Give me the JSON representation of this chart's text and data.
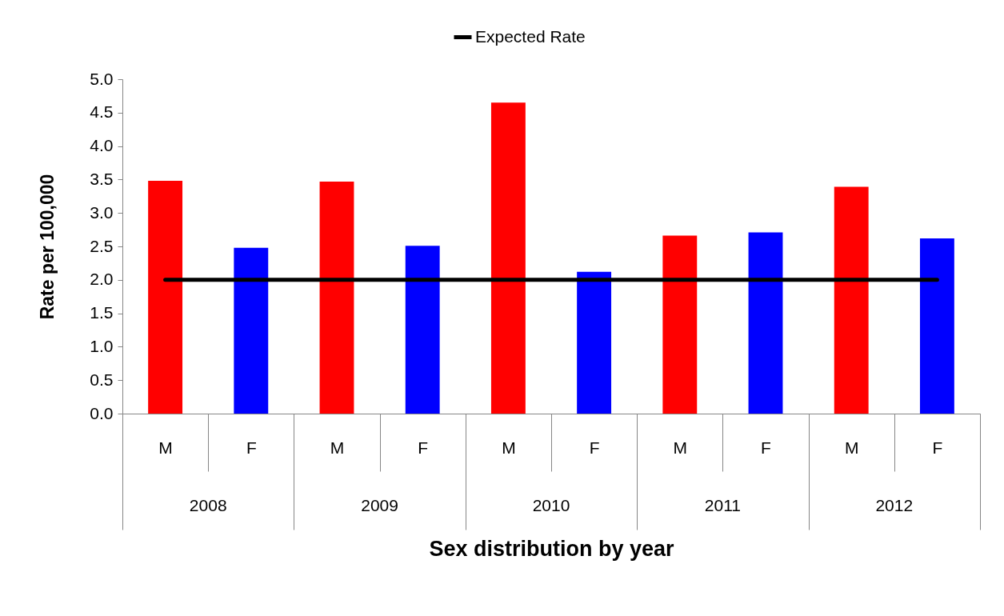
{
  "chart_data": {
    "type": "bar",
    "xlabel": "Sex distribution by year",
    "ylabel": "Rate per 100,000",
    "categories": [
      "M",
      "F",
      "M",
      "F",
      "M",
      "F",
      "M",
      "F",
      "M",
      "F"
    ],
    "series": [
      {
        "colors": [
          "#ff0000",
          "#0000ff",
          "#ff0000",
          "#0000ff",
          "#ff0000",
          "#0000ff",
          "#ff0000",
          "#0000ff",
          "#ff0000",
          "#0000ff"
        ],
        "values": [
          3.48,
          2.48,
          3.47,
          2.51,
          4.65,
          2.12,
          2.66,
          2.71,
          3.39,
          2.62
        ]
      },
      {
        "type": "line",
        "name": "Expected Rate",
        "color": "#000000",
        "values": [
          2,
          2,
          2,
          2,
          2,
          2,
          2,
          2,
          2,
          2
        ]
      }
    ],
    "ylim": [
      0,
      5
    ],
    "yticks": [
      {
        "value": 0,
        "label": "0.0"
      },
      {
        "value": 0.5,
        "label": "0.5"
      },
      {
        "value": 1,
        "label": "1.0"
      },
      {
        "value": 1.5,
        "label": "1.5"
      },
      {
        "value": 2,
        "label": "2.0"
      },
      {
        "value": 2.5,
        "label": "2.5"
      },
      {
        "value": 3,
        "label": "3.0"
      },
      {
        "value": 3.5,
        "label": "3.5"
      },
      {
        "value": 4,
        "label": "4.0"
      },
      {
        "value": 4.5,
        "label": "4.5"
      },
      {
        "value": 5,
        "label": "5.0"
      }
    ],
    "annotations": [
      "2008",
      "2009",
      "2010",
      "2011",
      "2012"
    ],
    "legend": "top",
    "grid": false
  }
}
